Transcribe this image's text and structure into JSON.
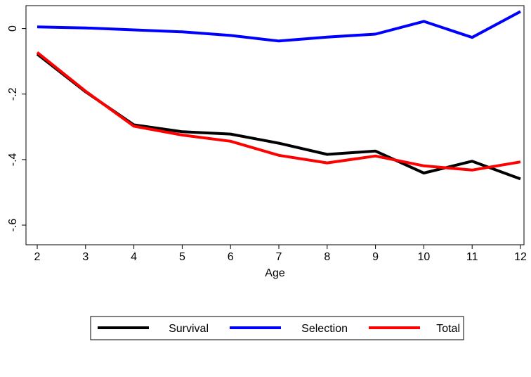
{
  "chart_data": {
    "type": "line",
    "title": "",
    "xlabel": "Age",
    "ylabel": "",
    "x": [
      2,
      3,
      4,
      5,
      6,
      7,
      8,
      9,
      10,
      11,
      12
    ],
    "x_ticks": [
      2,
      3,
      4,
      5,
      6,
      7,
      8,
      9,
      10,
      11,
      12
    ],
    "y_ticks": [
      0,
      -0.2,
      -0.4,
      -0.6
    ],
    "y_tick_labels": [
      "0",
      "-.2",
      "-.4",
      "-.6"
    ],
    "xlim": [
      2,
      12
    ],
    "ylim": [
      -0.66,
      0.07
    ],
    "grid": false,
    "legend_position": "bottom",
    "series": [
      {
        "name": "Survival",
        "color": "#000000",
        "values": [
          -0.078,
          -0.193,
          -0.294,
          -0.315,
          -0.322,
          -0.35,
          -0.384,
          -0.374,
          -0.441,
          -0.405,
          -0.459
        ]
      },
      {
        "name": "Selection",
        "color": "#0000ff",
        "values": [
          0.005,
          0.002,
          -0.004,
          -0.01,
          -0.021,
          -0.038,
          -0.026,
          -0.017,
          0.022,
          -0.027,
          0.052
        ]
      },
      {
        "name": "Total",
        "color": "#ff0000",
        "values": [
          -0.073,
          -0.191,
          -0.298,
          -0.325,
          -0.344,
          -0.387,
          -0.41,
          -0.389,
          -0.419,
          -0.432,
          -0.407
        ]
      }
    ]
  }
}
